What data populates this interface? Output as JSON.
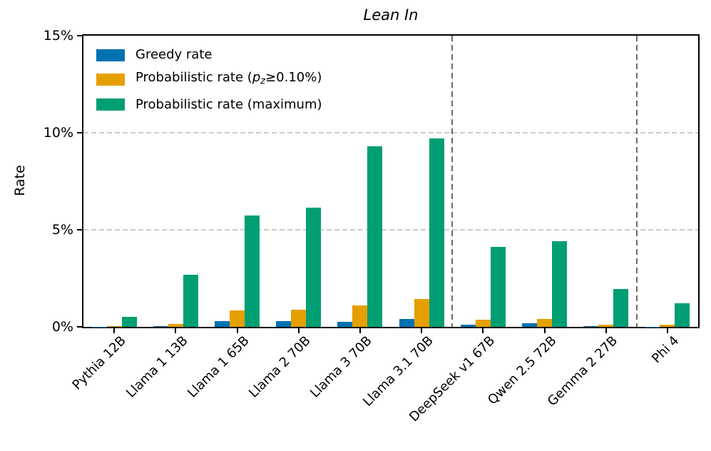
{
  "chart_data": {
    "type": "bar",
    "title": "Lean In",
    "ylabel": "Rate",
    "ylim": [
      0,
      15
    ],
    "yticks": [
      {
        "value": 0,
        "label": "0%"
      },
      {
        "value": 5,
        "label": "5%"
      },
      {
        "value": 10,
        "label": "10%"
      },
      {
        "value": 15,
        "label": "15%"
      }
    ],
    "gridlines_y": [
      5,
      10
    ],
    "grid": "horizontal-dashed",
    "legend_position": "upper-left",
    "categories": [
      "Pythia 12B",
      "Llama 1 13B",
      "Llama 1 65B",
      "Llama 2 70B",
      "Llama 3 70B",
      "Llama 3.1 70B",
      "DeepSeek v1 67B",
      "Qwen 2.5 72B",
      "Gemma 2 27B",
      "Phi 4"
    ],
    "series": [
      {
        "name": "Greedy rate",
        "color": "#0072B2",
        "values": [
          0.01,
          0.05,
          0.3,
          0.28,
          0.25,
          0.4,
          0.1,
          0.2,
          0.03,
          0.01
        ]
      },
      {
        "name": "Probabilistic rate (p_z≥0.10%)",
        "color": "#E69F00",
        "values": [
          0.05,
          0.15,
          0.85,
          0.9,
          1.1,
          1.45,
          0.35,
          0.4,
          0.1,
          0.1
        ]
      },
      {
        "name": "Probabilistic rate (maximum)",
        "color": "#009E73",
        "values": [
          0.5,
          2.7,
          5.75,
          6.15,
          9.3,
          9.7,
          4.1,
          4.4,
          1.95,
          1.2
        ]
      }
    ],
    "separators_after_category_index": [
      5,
      8
    ],
    "separator_color": "#6b6b6b",
    "gridline_color": "#cdcdcd",
    "axis_color": "#000000"
  },
  "legend": {
    "items": [
      {
        "id": "greedy-rate",
        "color": "#0072B2",
        "parts": [
          {
            "text": "Greedy rate",
            "style": "normal"
          }
        ]
      },
      {
        "id": "probabilistic-rate-threshold",
        "color": "#E69F00",
        "parts": [
          {
            "text": "Probabilistic rate (",
            "style": "normal"
          },
          {
            "text": "p",
            "style": "italic"
          },
          {
            "text": "z",
            "style": "subscript"
          },
          {
            "text": "≥0.10%)",
            "style": "normal"
          }
        ]
      },
      {
        "id": "probabilistic-rate-maximum",
        "color": "#009E73",
        "parts": [
          {
            "text": "Probabilistic rate (maximum)",
            "style": "normal"
          }
        ]
      }
    ]
  }
}
